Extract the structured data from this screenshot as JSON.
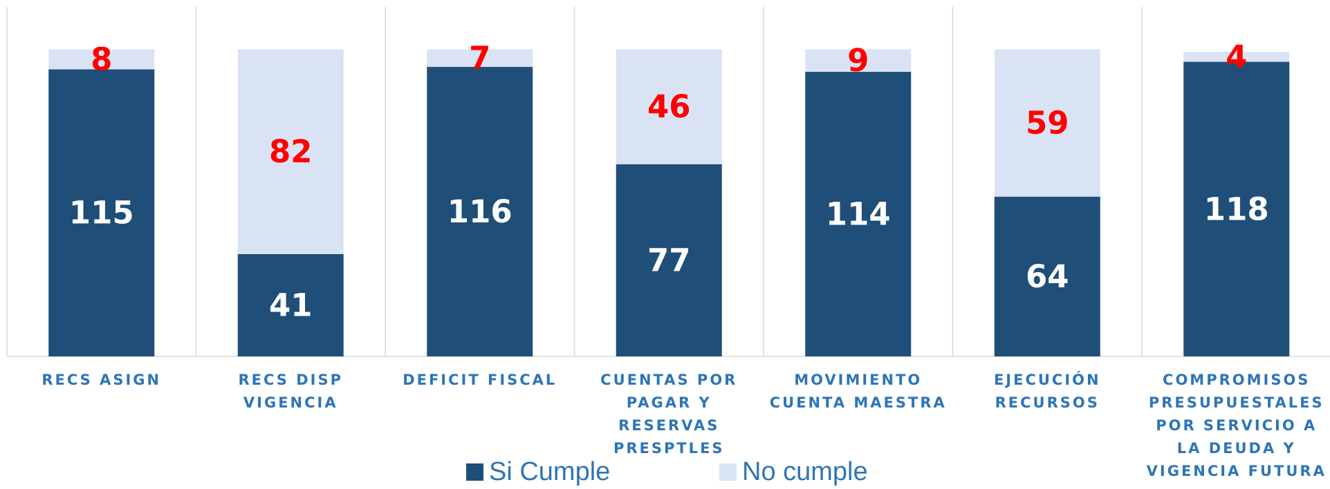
{
  "chart_data": {
    "type": "stacked_bar",
    "categories": [
      "RECS ASIGN",
      "RECS DISP VIGENCIA",
      "DEFICIT FISCAL",
      "CUENTAS POR PAGAR Y RESERVAS PRESPTLES",
      "MOVIMIENTO CUENTA MAESTRA",
      "EJECUCIÓN RECURSOS",
      "COMPROMISOS PRESUPUESTALES POR SERVICIO A LA DEUDA Y VIGENCIA FUTURA"
    ],
    "series": [
      {
        "name": "Si Cumple",
        "color": "#1f4e79",
        "label_color": "#ffffff",
        "values": [
          115,
          41,
          116,
          77,
          114,
          64,
          118
        ]
      },
      {
        "name": "No cumple",
        "color": "#dae3f3",
        "label_color": "#ff0000",
        "values": [
          8,
          82,
          7,
          46,
          9,
          59,
          4
        ]
      }
    ],
    "ylim": [
      0,
      140
    ],
    "grid": true
  }
}
